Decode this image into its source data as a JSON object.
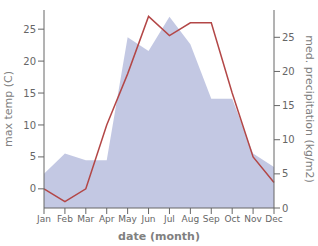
{
  "chart_data": {
    "type": "line",
    "xlabel": "date (month)",
    "ylabel": "max temp (C)",
    "y2label": "med. precipitation (kg/m2)",
    "categories": [
      "Jan",
      "Feb",
      "Mar",
      "Apr",
      "May",
      "Jun",
      "Jul",
      "Aug",
      "Sep",
      "Oct",
      "Nov",
      "Dec"
    ],
    "series": [
      {
        "type": "area",
        "axis": "y2",
        "color": "#b8bede",
        "values": [
          5,
          8,
          7,
          7,
          25,
          23,
          28,
          24,
          16,
          16,
          8,
          6
        ]
      },
      {
        "type": "line",
        "color": "#b34747",
        "values": [
          0,
          -2,
          0,
          10,
          18,
          27,
          24,
          26,
          26,
          15,
          5,
          1
        ]
      }
    ],
    "ylim": [
      -3,
      28
    ],
    "yticks": [
      0,
      5,
      10,
      15,
      20,
      25
    ],
    "y2lim": [
      0,
      29
    ],
    "y2ticks": [
      0,
      5,
      10,
      15,
      20,
      25
    ],
    "grid": false
  }
}
